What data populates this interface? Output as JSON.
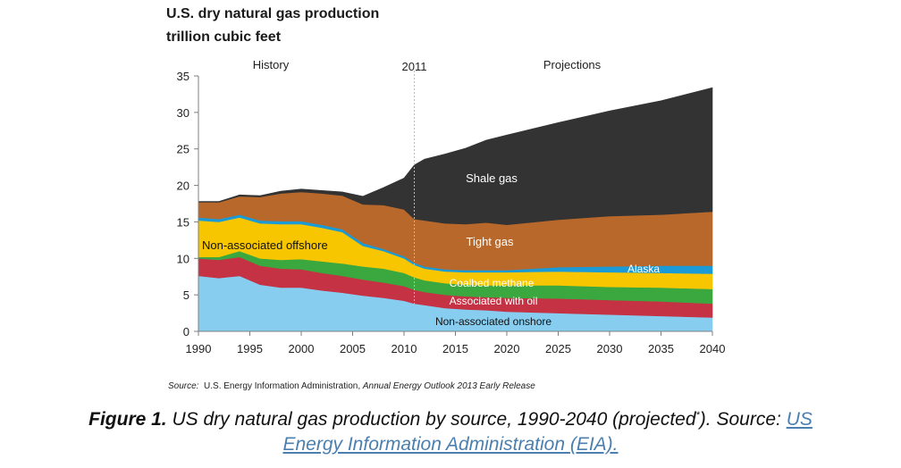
{
  "chart_data": {
    "type": "area",
    "stacked": true,
    "title": "U.S. dry natural gas production",
    "unit": "trillion cubic feet",
    "xlim": [
      1990,
      2040
    ],
    "ylim": [
      0,
      35
    ],
    "xticks": [
      "1990",
      "1995",
      "2000",
      "2005",
      "2010",
      "2015",
      "2020",
      "2025",
      "2030",
      "2035",
      "2040"
    ],
    "yticks": [
      "0",
      "5",
      "10",
      "15",
      "20",
      "25",
      "30",
      "35"
    ],
    "x": [
      1990,
      1992,
      1994,
      1996,
      1998,
      2000,
      2002,
      2004,
      2006,
      2008,
      2010,
      2011,
      2012,
      2014,
      2016,
      2018,
      2020,
      2025,
      2030,
      2035,
      2040
    ],
    "divider_year": 2011,
    "divider_label": "2011",
    "history_label": "History",
    "projections_label": "Projections",
    "series": [
      {
        "name": "Non-associated onshore",
        "color": "#87cdf0",
        "values": [
          7.6,
          7.3,
          7.6,
          6.4,
          6.0,
          6.0,
          5.6,
          5.3,
          4.9,
          4.6,
          4.2,
          3.8,
          3.6,
          3.2,
          3.0,
          2.9,
          2.7,
          2.5,
          2.3,
          2.1,
          1.9
        ]
      },
      {
        "name": "Associated with oil",
        "color": "#c43244",
        "values": [
          2.4,
          2.5,
          2.6,
          2.6,
          2.6,
          2.5,
          2.4,
          2.3,
          2.2,
          2.1,
          2.0,
          1.9,
          1.8,
          1.8,
          1.8,
          1.8,
          1.9,
          2.0,
          2.0,
          2.0,
          1.9
        ]
      },
      {
        "name": "Coalbed methane",
        "color": "#3aa83e",
        "values": [
          0.2,
          0.4,
          0.8,
          1.0,
          1.2,
          1.4,
          1.6,
          1.7,
          1.8,
          1.9,
          1.8,
          1.7,
          1.6,
          1.6,
          1.6,
          1.6,
          1.7,
          1.8,
          1.8,
          1.9,
          2.0
        ]
      },
      {
        "name": "Non-associated offshore",
        "color": "#f7c600",
        "values": [
          5.0,
          4.8,
          4.6,
          4.8,
          4.9,
          4.8,
          4.6,
          4.3,
          2.8,
          2.4,
          2.0,
          1.7,
          1.6,
          1.6,
          1.7,
          1.8,
          1.8,
          1.9,
          2.0,
          2.0,
          2.1
        ]
      },
      {
        "name": "Alaska",
        "color": "#1a9ad6",
        "values": [
          0.4,
          0.4,
          0.4,
          0.4,
          0.4,
          0.4,
          0.4,
          0.4,
          0.4,
          0.3,
          0.3,
          0.3,
          0.3,
          0.3,
          0.3,
          0.3,
          0.3,
          0.6,
          0.8,
          1.0,
          1.1
        ]
      },
      {
        "name": "Tight gas",
        "color": "#b8682a",
        "values": [
          2.1,
          2.3,
          2.5,
          3.2,
          3.8,
          4.0,
          4.3,
          4.6,
          5.3,
          6.0,
          6.4,
          6.0,
          6.3,
          6.3,
          6.3,
          6.5,
          6.2,
          6.5,
          6.9,
          7.0,
          7.4
        ]
      },
      {
        "name": "Shale gas",
        "color": "#333333",
        "values": [
          0.1,
          0.1,
          0.2,
          0.2,
          0.3,
          0.4,
          0.4,
          0.5,
          1.1,
          2.4,
          4.3,
          7.4,
          8.4,
          9.5,
          10.4,
          11.3,
          12.3,
          13.3,
          14.4,
          15.6,
          17.0
        ]
      }
    ],
    "labels": {
      "shale": "Shale gas",
      "tight": "Tight gas",
      "alaska": "Alaska",
      "coalbed": "Coalbed methane",
      "assoc": "Associated with oil",
      "onshore": "Non-associated onshore",
      "offshore": "Non-associated offshore"
    }
  },
  "source_note": {
    "prefix": "Source:",
    "org": "U.S. Energy Information Administration,",
    "publication": "Annual Energy Outlook 2013 Early Release"
  },
  "caption": {
    "figure": "Figure 1.",
    "text": "US dry natural gas production by source, 1990-2040 (projected",
    "marker": "*",
    "text_end": "). Source:",
    "link_part1": "US",
    "link_part2": "Energy Information Administration (EIA)."
  }
}
